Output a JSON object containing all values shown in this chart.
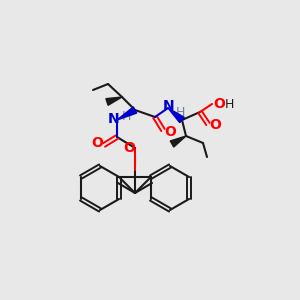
{
  "background_color": "#e8e8e8",
  "bond_color": "#1a1a1a",
  "nitrogen_color": "#0000cd",
  "oxygen_color": "#ff0000",
  "h_color": "#708090",
  "figsize": [
    3.0,
    3.0
  ],
  "dpi": 100,
  "xlim": [
    0,
    300
  ],
  "ylim": [
    0,
    300
  ]
}
